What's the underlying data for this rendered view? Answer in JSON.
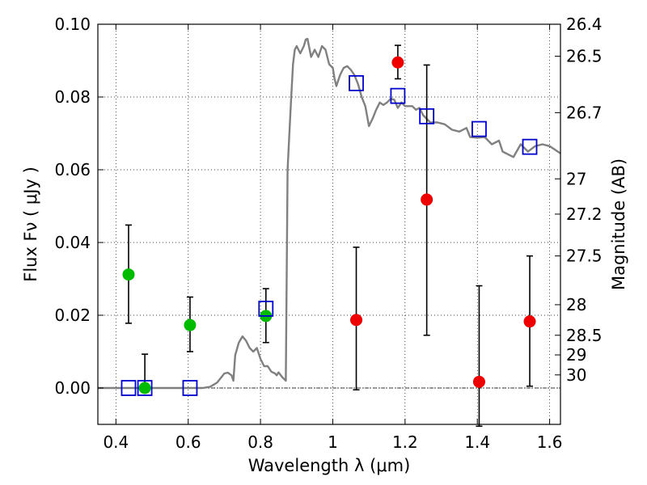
{
  "chart_data": {
    "type": "scatter",
    "xlabel": "Wavelength  λ (μm)",
    "ylabel": "Flux  Fν  ( μJy )",
    "ylabel2": "Magnitude (AB)",
    "xlim": [
      0.35,
      1.63
    ],
    "ylim": [
      -0.01,
      0.1
    ],
    "grid": true,
    "x_ticks": [
      {
        "value": 0.4,
        "label": "0.4"
      },
      {
        "value": 0.6,
        "label": "0.6"
      },
      {
        "value": 0.8,
        "label": "0.8"
      },
      {
        "value": 1.0,
        "label": "1"
      },
      {
        "value": 1.2,
        "label": "1.2"
      },
      {
        "value": 1.4,
        "label": "1.4"
      },
      {
        "value": 1.6,
        "label": "1.6"
      }
    ],
    "y_ticks": [
      {
        "value": 0.0,
        "label": "0.00"
      },
      {
        "value": 0.02,
        "label": "0.02"
      },
      {
        "value": 0.04,
        "label": "0.04"
      },
      {
        "value": 0.06,
        "label": "0.06"
      },
      {
        "value": 0.08,
        "label": "0.08"
      },
      {
        "value": 0.1,
        "label": "0.10"
      }
    ],
    "mag_ticks": [
      {
        "flux": 0.1,
        "label": "26.4"
      },
      {
        "flux": 0.0912,
        "label": "26.5"
      },
      {
        "flux": 0.0757,
        "label": "26.7"
      },
      {
        "flux": 0.0575,
        "label": "27"
      },
      {
        "flux": 0.0478,
        "label": "27.2"
      },
      {
        "flux": 0.0363,
        "label": "27.5"
      },
      {
        "flux": 0.0229,
        "label": "28"
      },
      {
        "flux": 0.0145,
        "label": "28.5"
      },
      {
        "flux": 0.0091,
        "label": "29"
      },
      {
        "flux": 0.0036,
        "label": "30"
      }
    ],
    "series": [
      {
        "kind": "line",
        "color": "#808080",
        "x": [
          0.35,
          0.64,
          0.66,
          0.68,
          0.7,
          0.71,
          0.72,
          0.725,
          0.73,
          0.74,
          0.75,
          0.76,
          0.77,
          0.78,
          0.79,
          0.8,
          0.81,
          0.82,
          0.83,
          0.84,
          0.845,
          0.85,
          0.86,
          0.87,
          0.875,
          0.88,
          0.885,
          0.89,
          0.895,
          0.9,
          0.91,
          0.92,
          0.925,
          0.93,
          0.94,
          0.95,
          0.96,
          0.97,
          0.98,
          0.99,
          1.0,
          1.005,
          1.01,
          1.02,
          1.03,
          1.04,
          1.05,
          1.06,
          1.07,
          1.08,
          1.09,
          1.1,
          1.11,
          1.12,
          1.13,
          1.14,
          1.15,
          1.16,
          1.17,
          1.18,
          1.19,
          1.2,
          1.21,
          1.22,
          1.23,
          1.24,
          1.25,
          1.27,
          1.29,
          1.31,
          1.33,
          1.35,
          1.37,
          1.38,
          1.4,
          1.42,
          1.44,
          1.46,
          1.47,
          1.48,
          1.5,
          1.52,
          1.54,
          1.56,
          1.58,
          1.6,
          1.63
        ],
        "y": [
          0.0,
          0.0,
          0.0003,
          0.0015,
          0.004,
          0.0042,
          0.0035,
          0.002,
          0.009,
          0.0125,
          0.0142,
          0.013,
          0.011,
          0.01,
          0.011,
          0.008,
          0.006,
          0.006,
          0.0045,
          0.004,
          0.0035,
          0.0043,
          0.003,
          0.002,
          0.06,
          0.07,
          0.08,
          0.089,
          0.093,
          0.094,
          0.092,
          0.094,
          0.0958,
          0.096,
          0.091,
          0.093,
          0.091,
          0.094,
          0.093,
          0.089,
          0.088,
          0.085,
          0.083,
          0.086,
          0.088,
          0.0885,
          0.0875,
          0.086,
          0.0835,
          0.08,
          0.0775,
          0.072,
          0.074,
          0.0765,
          0.0785,
          0.0778,
          0.0785,
          0.0795,
          0.0793,
          0.077,
          0.0785,
          0.0775,
          0.0775,
          0.0775,
          0.0765,
          0.077,
          0.075,
          0.073,
          0.073,
          0.0725,
          0.071,
          0.0705,
          0.0715,
          0.069,
          0.0688,
          0.069,
          0.067,
          0.068,
          0.065,
          0.0645,
          0.0635,
          0.067,
          0.065,
          0.0665,
          0.067,
          0.0665,
          0.0645
        ]
      },
      {
        "kind": "points",
        "marker": "circle",
        "color": "#00bb00",
        "x": [
          0.435,
          0.48,
          0.605,
          0.815
        ],
        "y": [
          0.0312,
          0.0,
          0.0173,
          0.0198
        ],
        "err_low": [
          0.0178,
          -0.001,
          0.01,
          0.0125
        ],
        "err_high": [
          0.0448,
          0.0093,
          0.025,
          0.0273
        ]
      },
      {
        "kind": "points",
        "marker": "circle",
        "color": "#ee0000",
        "x": [
          1.065,
          1.18,
          1.26,
          1.405,
          1.545
        ],
        "y": [
          0.0187,
          0.0895,
          0.0518,
          0.0017,
          0.0183
        ],
        "err_low": [
          -0.0005,
          0.085,
          0.0145,
          -0.0105,
          0.0005
        ],
        "err_high": [
          0.0387,
          0.0942,
          0.0888,
          0.0281,
          0.0363
        ]
      },
      {
        "kind": "points",
        "marker": "square",
        "color": "#0000cc",
        "x": [
          0.435,
          0.48,
          0.605,
          0.815,
          1.065,
          1.18,
          1.26,
          1.405,
          1.545
        ],
        "y": [
          0.0,
          0.0,
          0.0,
          0.0218,
          0.0838,
          0.0803,
          0.0747,
          0.0712,
          0.0663
        ]
      }
    ]
  }
}
